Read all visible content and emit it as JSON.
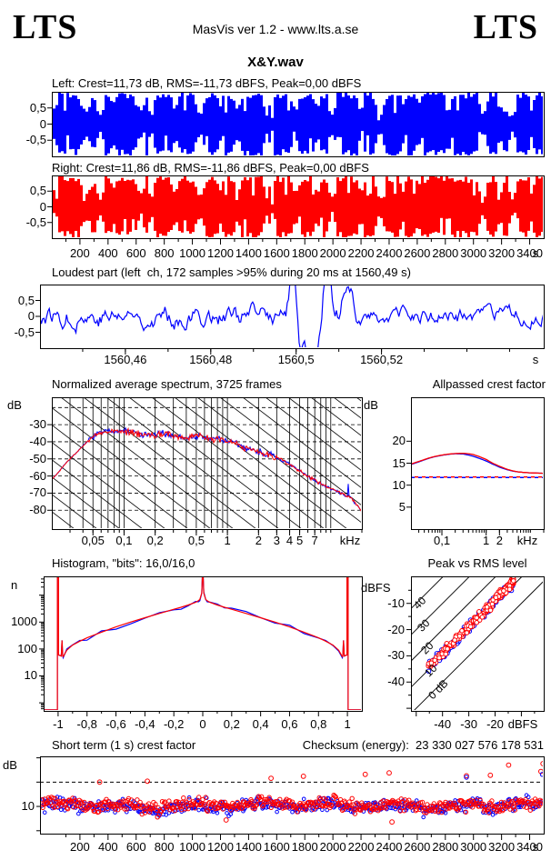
{
  "header": {
    "logo_left": "LTS",
    "center": "MasVis ver 1.2 - www.lts.a.se",
    "logo_right": "LTS"
  },
  "file_title": "X&Y.wav",
  "colors": {
    "left_channel": "#0000ff",
    "right_channel": "#ff0000",
    "grid": "#000000",
    "background": "#ffffff"
  },
  "chart_data": [
    {
      "id": "wave_left",
      "type": "waveform",
      "channel": "left",
      "title": "Left: Crest=11,73 dB, RMS=-11,73 dBFS, Peak=0,00 dBFS",
      "crest_db": 11.73,
      "rms_dbfs": -11.73,
      "peak_dbfs": 0.0,
      "color": "#0000ff",
      "ylim": [
        -1,
        1
      ],
      "xlim_s": [
        0,
        3500
      ],
      "yticks": [
        {
          "v": 0.5,
          "label": "0,5"
        },
        {
          "v": 0,
          "label": "0"
        },
        {
          "v": -0.5,
          "label": "-0,5"
        }
      ],
      "envelope_dips": [
        [
          0,
          40,
          0.5
        ],
        [
          235,
          55,
          0.45
        ],
        [
          335,
          40,
          0.28
        ],
        [
          430,
          22,
          0.65
        ],
        [
          620,
          45,
          0.5
        ],
        [
          700,
          28,
          0.3
        ],
        [
          870,
          35,
          0.55
        ],
        [
          1045,
          45,
          0.38
        ],
        [
          1190,
          22,
          0.6
        ],
        [
          1310,
          30,
          0.5
        ],
        [
          1520,
          28,
          0.3
        ],
        [
          1560,
          12,
          0.2
        ],
        [
          1725,
          35,
          0.5
        ],
        [
          1880,
          28,
          0.55
        ],
        [
          1985,
          40,
          0.35
        ],
        [
          2190,
          28,
          0.5
        ],
        [
          2325,
          40,
          0.3
        ],
        [
          2490,
          22,
          0.6
        ],
        [
          2600,
          18,
          0.65
        ],
        [
          3060,
          40,
          0.32
        ],
        [
          3180,
          25,
          0.5
        ],
        [
          3270,
          35,
          0.28
        ],
        [
          3405,
          22,
          0.5
        ],
        [
          3500,
          15,
          0.6
        ]
      ]
    },
    {
      "id": "wave_right",
      "type": "waveform",
      "channel": "right",
      "title": "Right: Crest=11,86 dB, RMS=-11,86 dBFS, Peak=0,00 dBFS",
      "crest_db": 11.86,
      "rms_dbfs": -11.86,
      "peak_dbfs": 0.0,
      "color": "#ff0000",
      "ylim": [
        -1,
        1
      ],
      "xlim_s": [
        0,
        3500
      ],
      "yticks": [
        {
          "v": 0.5,
          "label": "0,5"
        },
        {
          "v": 0,
          "label": "0"
        },
        {
          "v": -0.5,
          "label": "-0,5"
        }
      ]
    },
    {
      "id": "time_axis",
      "type": "axis",
      "unit": "s",
      "minor_step_s": 100,
      "ticks": [
        {
          "v": 200,
          "label": "200"
        },
        {
          "v": 400,
          "label": "400"
        },
        {
          "v": 600,
          "label": "600"
        },
        {
          "v": 800,
          "label": "800"
        },
        {
          "v": 1000,
          "label": "1000"
        },
        {
          "v": 1200,
          "label": "1200"
        },
        {
          "v": 1400,
          "label": "1400"
        },
        {
          "v": 1600,
          "label": "1600"
        },
        {
          "v": 1800,
          "label": "1800"
        },
        {
          "v": 2000,
          "label": "2000"
        },
        {
          "v": 2200,
          "label": "2200"
        },
        {
          "v": 2400,
          "label": "2400"
        },
        {
          "v": 2600,
          "label": "2600"
        },
        {
          "v": 2800,
          "label": "2800"
        },
        {
          "v": 3000,
          "label": "3000"
        },
        {
          "v": 3200,
          "label": "3200"
        },
        {
          "v": 3400,
          "label": "3400"
        }
      ]
    },
    {
      "id": "loudest",
      "type": "line",
      "title": "Loudest part (left  ch, 172 samples >95% during 20 ms at 1560,49 s)",
      "samples_over_95": 172,
      "window_ms": 20,
      "at_s": "1560,49",
      "color": "#0000ff",
      "ylim": [
        -1,
        1
      ],
      "xlim_s": [
        1560.44,
        1560.558
      ],
      "unit": "s",
      "yticks": [
        {
          "v": 0.5,
          "label": "0,5"
        },
        {
          "v": 0,
          "label": "0"
        },
        {
          "v": -0.5,
          "label": "-0,5"
        }
      ],
      "xticks": [
        {
          "v": 1560.46,
          "label": "1560,46"
        },
        {
          "v": 1560.48,
          "label": "1560,48"
        },
        {
          "v": 1560.5,
          "label": "1560,5"
        },
        {
          "v": 1560.52,
          "label": "1560,52"
        }
      ],
      "events": [
        [
          0.503,
          1.8,
          0.006
        ],
        [
          0.517,
          -0.8,
          0.005
        ],
        [
          0.545,
          -1.9,
          0.014
        ],
        [
          0.568,
          1.9,
          0.012
        ],
        [
          0.585,
          -0.9,
          0.006
        ],
        [
          0.61,
          0.55,
          0.01
        ]
      ]
    },
    {
      "id": "spectrum",
      "type": "spectrum",
      "title": "Normalized average spectrum, 3725 frames",
      "frames": 3725,
      "ylabel": "dB",
      "xunit": "kHz",
      "xlim_khz": [
        0.02,
        20
      ],
      "ylim_db": [
        -91,
        -14
      ],
      "yticks": [
        {
          "v": -30,
          "label": "-30"
        },
        {
          "v": -40,
          "label": "-40"
        },
        {
          "v": -50,
          "label": "-50"
        },
        {
          "v": -60,
          "label": "-60"
        },
        {
          "v": -70,
          "label": "-70"
        },
        {
          "v": -80,
          "label": "-80"
        }
      ],
      "xticks": [
        {
          "v": 0.05,
          "label": "0,05"
        },
        {
          "v": 0.1,
          "label": "0,1"
        },
        {
          "v": 0.2,
          "label": "0,2"
        },
        {
          "v": 0.5,
          "label": "0,5"
        },
        {
          "v": 1,
          "label": "1"
        },
        {
          "v": 2,
          "label": "2"
        },
        {
          "v": 3,
          "label": "3"
        },
        {
          "v": 4,
          "label": "4"
        },
        {
          "v": 5,
          "label": "5"
        },
        {
          "v": 7,
          "label": "7"
        }
      ],
      "curve_db": [
        [
          0.02,
          -62
        ],
        [
          0.023,
          -58
        ],
        [
          0.026,
          -54
        ],
        [
          0.03,
          -50
        ],
        [
          0.035,
          -46
        ],
        [
          0.04,
          -42.5
        ],
        [
          0.045,
          -39.5
        ],
        [
          0.05,
          -37
        ],
        [
          0.055,
          -35.5
        ],
        [
          0.06,
          -34.5
        ],
        [
          0.07,
          -33.8
        ],
        [
          0.08,
          -33.4
        ],
        [
          0.09,
          -34.2
        ],
        [
          0.1,
          -33.4
        ],
        [
          0.12,
          -34.5
        ],
        [
          0.15,
          -36.5
        ],
        [
          0.2,
          -36
        ],
        [
          0.25,
          -35.2
        ],
        [
          0.3,
          -36.5
        ],
        [
          0.4,
          -37.5
        ],
        [
          0.5,
          -36.8
        ],
        [
          0.6,
          -37.5
        ],
        [
          0.7,
          -38.5
        ],
        [
          0.8,
          -37.8
        ],
        [
          0.9,
          -39
        ],
        [
          1.0,
          -39.5
        ],
        [
          1.2,
          -41
        ],
        [
          1.5,
          -43.5
        ],
        [
          1.8,
          -45
        ],
        [
          2.2,
          -46.5
        ],
        [
          2.7,
          -48.5
        ],
        [
          3.2,
          -50
        ],
        [
          4,
          -53.5
        ],
        [
          5,
          -57
        ],
        [
          6,
          -60
        ],
        [
          7,
          -62.5
        ],
        [
          8,
          -64.5
        ],
        [
          10,
          -67.5
        ],
        [
          12,
          -69.5
        ],
        [
          14,
          -71.5
        ],
        [
          15,
          -72
        ],
        [
          16,
          -73.5
        ],
        [
          18,
          -77
        ],
        [
          20,
          -81
        ]
      ],
      "blue_spike_khz": 14.8
    },
    {
      "id": "allpass",
      "type": "lines",
      "title": "Allpassed crest factor",
      "ylabel": "dB",
      "xunit": "kHz",
      "xlim_khz": [
        0.02,
        20
      ],
      "ylim_db": [
        0,
        30
      ],
      "yticks": [
        {
          "v": 20,
          "label": "20"
        },
        {
          "v": 15,
          "label": "15"
        },
        {
          "v": 10,
          "label": "10"
        },
        {
          "v": 5,
          "label": "5"
        }
      ],
      "xticks": [
        {
          "v": 0.1,
          "label": "0,1"
        },
        {
          "v": 1,
          "label": "1"
        },
        {
          "v": 2,
          "label": "2"
        }
      ],
      "series": [
        {
          "name": "left",
          "color": "#0000ff",
          "dashed_level_db": 11.73,
          "points": [
            [
              0.02,
              14.7
            ],
            [
              0.03,
              15.3
            ],
            [
              0.05,
              16.1
            ],
            [
              0.07,
              16.5
            ],
            [
              0.1,
              16.8
            ],
            [
              0.15,
              17.05
            ],
            [
              0.2,
              17.15
            ],
            [
              0.3,
              17.1
            ],
            [
              0.4,
              16.85
            ],
            [
              0.5,
              16.6
            ],
            [
              0.7,
              16.1
            ],
            [
              1,
              15.5
            ],
            [
              1.4,
              14.8
            ],
            [
              2,
              14.1
            ],
            [
              3,
              13.5
            ],
            [
              4,
              13.2
            ],
            [
              5,
              13.05
            ],
            [
              7,
              12.9
            ],
            [
              10,
              12.8
            ],
            [
              14,
              12.75
            ],
            [
              20,
              12.7
            ]
          ]
        },
        {
          "name": "right",
          "color": "#ff0000",
          "dashed_level_db": 11.86,
          "points": [
            [
              0.02,
              14.8
            ],
            [
              0.03,
              15.4
            ],
            [
              0.05,
              16.15
            ],
            [
              0.07,
              16.55
            ],
            [
              0.1,
              16.85
            ],
            [
              0.15,
              17.1
            ],
            [
              0.2,
              17.2
            ],
            [
              0.3,
              17.25
            ],
            [
              0.4,
              17.15
            ],
            [
              0.5,
              17.0
            ],
            [
              0.7,
              16.5
            ],
            [
              1,
              15.85
            ],
            [
              1.4,
              15.0
            ],
            [
              2,
              14.3
            ],
            [
              3,
              13.6
            ],
            [
              4,
              13.25
            ],
            [
              5,
              13.05
            ],
            [
              7,
              12.9
            ],
            [
              10,
              12.8
            ],
            [
              14,
              12.75
            ],
            [
              20,
              12.7
            ]
          ]
        }
      ]
    },
    {
      "id": "histogram",
      "type": "histogram",
      "title": "Histogram, \"bits\": 16,0/16,0",
      "bits_left": "16,0",
      "bits_right": "16,0",
      "ylabel": "n",
      "ylim_n": [
        0.5,
        50000
      ],
      "xlim": [
        -1.1,
        1.1
      ],
      "yticks": [
        {
          "v": 1000,
          "label": "1000"
        },
        {
          "v": 100,
          "label": "100"
        },
        {
          "v": 10,
          "label": "10"
        }
      ],
      "xticks": [
        {
          "v": -1,
          "label": "-1"
        },
        {
          "v": -0.8,
          "label": "-0,8"
        },
        {
          "v": -0.6,
          "label": "-0,6"
        },
        {
          "v": -0.4,
          "label": "-0,4"
        },
        {
          "v": -0.2,
          "label": "-0,2"
        },
        {
          "v": 0,
          "label": "0"
        },
        {
          "v": 0.2,
          "label": "0,2"
        },
        {
          "v": 0.4,
          "label": "0,4"
        },
        {
          "v": 0.6,
          "label": "0,6"
        },
        {
          "v": 0.8,
          "label": "0,8"
        },
        {
          "v": 1,
          "label": "1"
        }
      ],
      "half_curve_n": [
        [
          0.03,
          6200
        ],
        [
          0.05,
          5400
        ],
        [
          0.1,
          4300
        ],
        [
          0.15,
          3550
        ],
        [
          0.2,
          3000
        ],
        [
          0.3,
          2100
        ],
        [
          0.4,
          1450
        ],
        [
          0.5,
          1000
        ],
        [
          0.6,
          660
        ],
        [
          0.7,
          420
        ],
        [
          0.8,
          260
        ],
        [
          0.85,
          195
        ],
        [
          0.9,
          140
        ],
        [
          0.94,
          90
        ],
        [
          0.965,
          52
        ]
      ],
      "center_spike_n": 45000,
      "edge_spike_n": 45000,
      "side_spike": [
        0.973,
        210
      ],
      "series_colors": [
        "#0000ff",
        "#ff0000"
      ]
    },
    {
      "id": "peak_rms",
      "type": "scatter",
      "title": "Peak vs RMS level",
      "ylabel": "dBFS",
      "xunit_label": "dBFS",
      "xlim_dbfs": [
        -52,
        -1.5
      ],
      "ylim_dbfs": [
        -51,
        0.3
      ],
      "xticks": [
        {
          "v": -40,
          "label": "-40"
        },
        {
          "v": -30,
          "label": "-30"
        },
        {
          "v": -20,
          "label": "-20"
        }
      ],
      "yticks": [
        {
          "v": -10,
          "label": "-10"
        },
        {
          "v": -20,
          "label": "-20"
        },
        {
          "v": -30,
          "label": "-30"
        },
        {
          "v": -40,
          "label": "-40"
        }
      ],
      "diagonals_db": [
        40,
        30,
        20,
        10,
        0
      ],
      "diagonal_labels": [
        "40",
        "30",
        "20",
        "10",
        "0 dB"
      ],
      "points": {
        "count": 235,
        "crest_mean_db": 11.3,
        "crest_sd_db": 1.8,
        "rms_range_dbfs": [
          -45.5,
          -13
        ]
      }
    },
    {
      "id": "short_term",
      "type": "scatter_time",
      "title": "Short term (1 s) crest factor",
      "checksum_text": "Checksum (energy):  23 330 027 576 178 531",
      "ylabel": "dB",
      "ylim_db": [
        4.4,
        20.3
      ],
      "dashed_level_db": 15,
      "yticks": [
        {
          "v": 10,
          "label": "10"
        }
      ],
      "mean_db": 10.3,
      "sd_db": 1.25,
      "outliers": [
        [
          340,
          15.0
        ],
        [
          680,
          15.2
        ],
        [
          1240,
          7.2
        ],
        [
          1560,
          15.8
        ],
        [
          1790,
          16.2
        ],
        [
          2230,
          16.6
        ],
        [
          2400,
          16.9
        ],
        [
          2420,
          6.8
        ],
        [
          2950,
          16.3
        ],
        [
          3120,
          16.4
        ],
        [
          3250,
          18.5
        ],
        [
          3480,
          17.2
        ],
        [
          3495,
          18.8
        ]
      ],
      "outliers_blue": [
        [
          2950,
          16.0
        ],
        [
          3490,
          16.6
        ]
      ]
    }
  ]
}
